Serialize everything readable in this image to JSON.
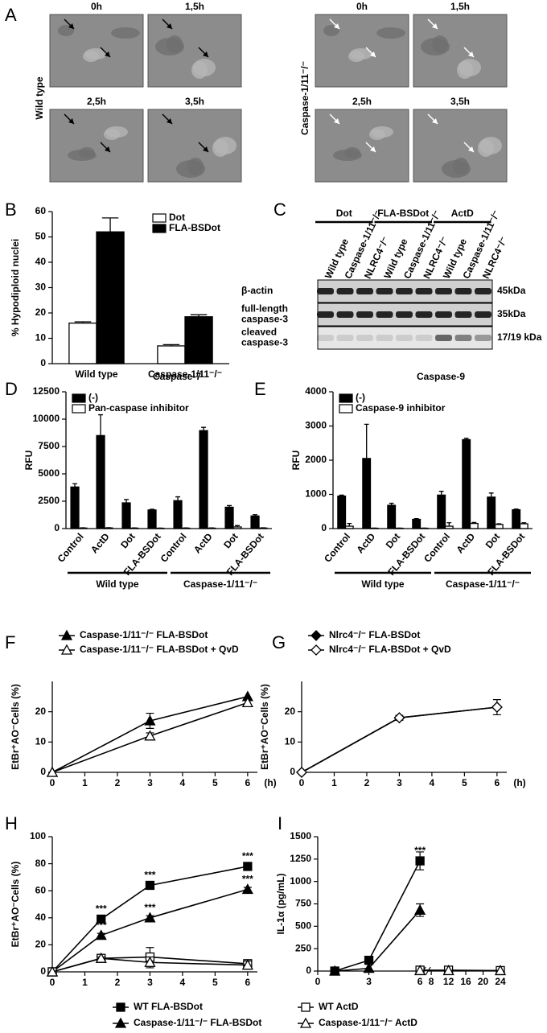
{
  "panel_a": {
    "panel": "A",
    "groups": [
      {
        "label": "Wild type",
        "times": [
          "0h",
          "1,5h",
          "2,5h",
          "3,5h"
        ]
      },
      {
        "label": "Caspase-1/11⁻/⁻",
        "times": [
          "0h",
          "1,5h",
          "2,5h",
          "3,5h"
        ]
      }
    ]
  },
  "panel_c": {
    "panel": "C",
    "groups": [
      "Dot",
      "FLA-BSDot",
      "ActD"
    ],
    "lanes": [
      "Wild type",
      "Caspase-1/11⁻/⁻",
      "NLRC4⁻/⁻",
      "Wild type",
      "Caspase-1/11⁻/⁻",
      "NLRC4⁻/⁻",
      "Wild type",
      "Caspase-1/11⁻/⁻",
      "NLRC4⁻/⁻"
    ],
    "rows": [
      {
        "label": [
          "β-actin"
        ],
        "size": "45kDa"
      },
      {
        "label": [
          "full-length",
          "caspase-3"
        ],
        "size": "35kDa"
      },
      {
        "label": [
          "cleaved",
          "caspase-3"
        ],
        "size": "17/19 kDa"
      }
    ]
  },
  "chart_data": [
    {
      "panel": "B",
      "type": "bar",
      "ylabel": "% Hypodiploid nuclei",
      "categories": [
        "Wild type",
        "Caspase-1/11⁻/⁻"
      ],
      "series": [
        {
          "name": "Dot",
          "color": "#ffffff",
          "values": [
            16,
            7
          ],
          "errors": [
            0.5,
            0.5
          ]
        },
        {
          "name": "FLA-BSDot",
          "color": "#000000",
          "values": [
            52,
            18.5
          ],
          "errors": [
            5.5,
            0.8
          ]
        }
      ],
      "ylim": [
        0,
        60
      ],
      "yticks": [
        0,
        10,
        20,
        30,
        40,
        50,
        60
      ],
      "legend": "top-right"
    },
    {
      "panel": "D",
      "type": "bar",
      "title": "Caspase-7",
      "ylabel": "RFU",
      "categories": [
        "Control",
        "ActD",
        "Dot",
        "FLA-BSDot",
        "Control",
        "ActD",
        "Dot",
        "FLA-BSDot"
      ],
      "groups": [
        "Wild type",
        "Caspase-1/11⁻/⁻"
      ],
      "rotated_labels": true,
      "series": [
        {
          "name": "(-)",
          "color": "#000000",
          "values": [
            3800,
            8500,
            2350,
            1700,
            2550,
            8950,
            1950,
            1150
          ],
          "errors": [
            300,
            1900,
            300,
            60,
            350,
            300,
            150,
            120
          ]
        },
        {
          "name": "Pan-caspase inhibitor",
          "color": "#ffffff",
          "values": [
            50,
            60,
            40,
            30,
            40,
            40,
            150,
            50
          ],
          "errors": [
            20,
            20,
            20,
            10,
            20,
            20,
            120,
            20
          ]
        }
      ],
      "ylim": [
        0,
        12500
      ],
      "yticks": [
        0,
        2500,
        5000,
        7500,
        10000,
        12500
      ],
      "legend": "top-left"
    },
    {
      "panel": "E",
      "type": "bar",
      "title": "Caspase-9",
      "ylabel": "RFU",
      "categories": [
        "Control",
        "ActD",
        "Dot",
        "FLA-BSDot",
        "Control",
        "ActD",
        "Dot",
        "FLA-BSDot"
      ],
      "groups": [
        "Wild type",
        "Caspase-1/11⁻/⁻"
      ],
      "rotated_labels": true,
      "series": [
        {
          "name": "(-)",
          "color": "#000000",
          "values": [
            950,
            2050,
            680,
            270,
            980,
            2600,
            920,
            550
          ],
          "errors": [
            30,
            1000,
            60,
            20,
            110,
            40,
            120,
            20
          ]
        },
        {
          "name": "Caspase-9 inhibitor",
          "color": "#ffffff",
          "values": [
            70,
            10,
            10,
            10,
            70,
            150,
            120,
            140
          ],
          "errors": [
            80,
            5,
            5,
            5,
            100,
            30,
            20,
            30
          ]
        }
      ],
      "ylim": [
        0,
        4000
      ],
      "yticks": [
        0,
        1000,
        2000,
        3000,
        4000
      ],
      "legend": "top-left"
    },
    {
      "panel": "F",
      "type": "line",
      "ylabel": "EtBr⁺AO⁻Cells (%)",
      "xunit": "(h)",
      "series": [
        {
          "name": "Caspase-1/11⁻/⁻ FLA-BSDot",
          "color": "#000000",
          "marker": "triangle",
          "filled": true,
          "x": [
            0,
            3,
            6
          ],
          "values": [
            0,
            17,
            25
          ],
          "errors": [
            null,
            2.5,
            null
          ]
        },
        {
          "name": "Caspase-1/11⁻/⁻ FLA-BSDot + QvD",
          "color": "#000000",
          "marker": "triangle",
          "filled": false,
          "x": [
            0,
            3,
            6
          ],
          "values": [
            0,
            12,
            23
          ],
          "errors": [
            null,
            1,
            null
          ]
        }
      ],
      "xlim": [
        0,
        6.3
      ],
      "xticks": [
        0,
        1,
        2,
        3,
        4,
        5,
        6
      ],
      "ylim": [
        0,
        30
      ],
      "yticks": [
        0,
        10,
        20
      ],
      "legend": "top-left"
    },
    {
      "panel": "G",
      "type": "line",
      "ylabel": "EtBr⁺AO⁻Cells (%)",
      "xunit": "(h)",
      "series": [
        {
          "name": "Nlrc4⁻/⁻ FLA-BSDot",
          "color": "#000000",
          "marker": "diamond",
          "filled": true,
          "x": [
            0,
            3,
            6
          ],
          "values": [
            0,
            18,
            21.5
          ],
          "errors": [
            null,
            0.8,
            2.5
          ]
        },
        {
          "name": "Nlrc4⁻/⁻ FLA-BSDot + QvD",
          "color": "#000000",
          "marker": "diamond",
          "filled": false,
          "x": [
            0,
            3,
            6
          ],
          "values": [
            0,
            18,
            21.5
          ],
          "errors": [
            null,
            null,
            null
          ]
        }
      ],
      "xlim": [
        0,
        6.3
      ],
      "xticks": [
        0,
        1,
        2,
        3,
        4,
        5,
        6
      ],
      "ylim": [
        0,
        30
      ],
      "yticks": [
        0,
        10,
        20
      ],
      "legend": "top-left"
    },
    {
      "panel": "H",
      "type": "line",
      "ylabel": "EtBr⁺AO⁻Cells (%)",
      "series": [
        {
          "name": "WT FLA-BSDot",
          "color": "#000000",
          "marker": "square",
          "filled": true,
          "x": [
            0,
            1.5,
            3,
            6
          ],
          "values": [
            0,
            39,
            64,
            78
          ],
          "errors": [
            null,
            1.5,
            1.5,
            1.5
          ]
        },
        {
          "name": "Caspase-1/11⁻/⁻ FLA-BSDot",
          "color": "#000000",
          "marker": "triangle",
          "filled": true,
          "x": [
            0,
            1.5,
            3,
            6
          ],
          "values": [
            0,
            27,
            40,
            61
          ],
          "errors": [
            null,
            1.5,
            1.5,
            1.5
          ]
        },
        {
          "name": "WT ActD",
          "color": "#000000",
          "marker": "square",
          "filled": false,
          "x": [
            0,
            1.5,
            3,
            6
          ],
          "values": [
            0,
            10,
            11,
            6
          ],
          "errors": [
            null,
            2,
            7,
            3
          ]
        },
        {
          "name": "Caspase-1/11⁻/⁻ ActD",
          "color": "#000000",
          "marker": "triangle",
          "filled": false,
          "x": [
            0,
            1.5,
            3,
            6
          ],
          "values": [
            0,
            10,
            7,
            5
          ],
          "errors": [
            null,
            1,
            4,
            3
          ]
        }
      ],
      "annotations": [
        {
          "text": "***",
          "x": 1.5,
          "y": 39
        },
        {
          "text": "***",
          "x": 3,
          "y": 64
        },
        {
          "text": "***",
          "x": 6,
          "y": 78
        },
        {
          "text": "***",
          "x": 1.5,
          "y": 27
        },
        {
          "text": "***",
          "x": 3,
          "y": 40
        },
        {
          "text": "***",
          "x": 6,
          "y": 61
        }
      ],
      "xlim": [
        0,
        6.3
      ],
      "xticks": [
        0,
        1,
        2,
        3,
        4,
        5,
        6
      ],
      "ylim": [
        0,
        100
      ],
      "yticks": [
        0,
        20,
        40,
        60,
        80,
        100
      ],
      "legend": "bottom"
    },
    {
      "panel": "I",
      "type": "line",
      "ylabel": "IL-1α (pg/mL)",
      "series": [
        {
          "color": "#000000",
          "marker": "square",
          "filled": true,
          "x": [
            1,
            3,
            6
          ],
          "values": [
            0,
            120,
            1230
          ],
          "errors": [
            null,
            20,
            100
          ]
        },
        {
          "color": "#000000",
          "marker": "triangle",
          "filled": true,
          "x": [
            1,
            3,
            6
          ],
          "values": [
            0,
            30,
            680
          ],
          "errors": [
            null,
            null,
            70
          ]
        },
        {
          "color": "#000000",
          "marker": "square",
          "filled": false,
          "x": [
            6,
            12,
            24
          ],
          "values": [
            10,
            10,
            5
          ],
          "errors": [
            null,
            null,
            null
          ]
        },
        {
          "color": "#000000",
          "marker": "triangle",
          "filled": false,
          "x": [
            6,
            12,
            24
          ],
          "values": [
            5,
            5,
            5
          ],
          "errors": [
            null,
            null,
            null
          ]
        }
      ],
      "annotations": [
        {
          "text": "***",
          "x": 6,
          "y": 1230
        }
      ],
      "xlim": [
        0,
        24
      ],
      "xbreak": [
        6,
        8
      ],
      "xticks": [
        0,
        3,
        6,
        8,
        12,
        16,
        20,
        24
      ],
      "ylim": [
        0,
        1500
      ],
      "yticks": [
        0,
        250,
        500,
        750,
        1000,
        1250,
        1500
      ]
    }
  ]
}
